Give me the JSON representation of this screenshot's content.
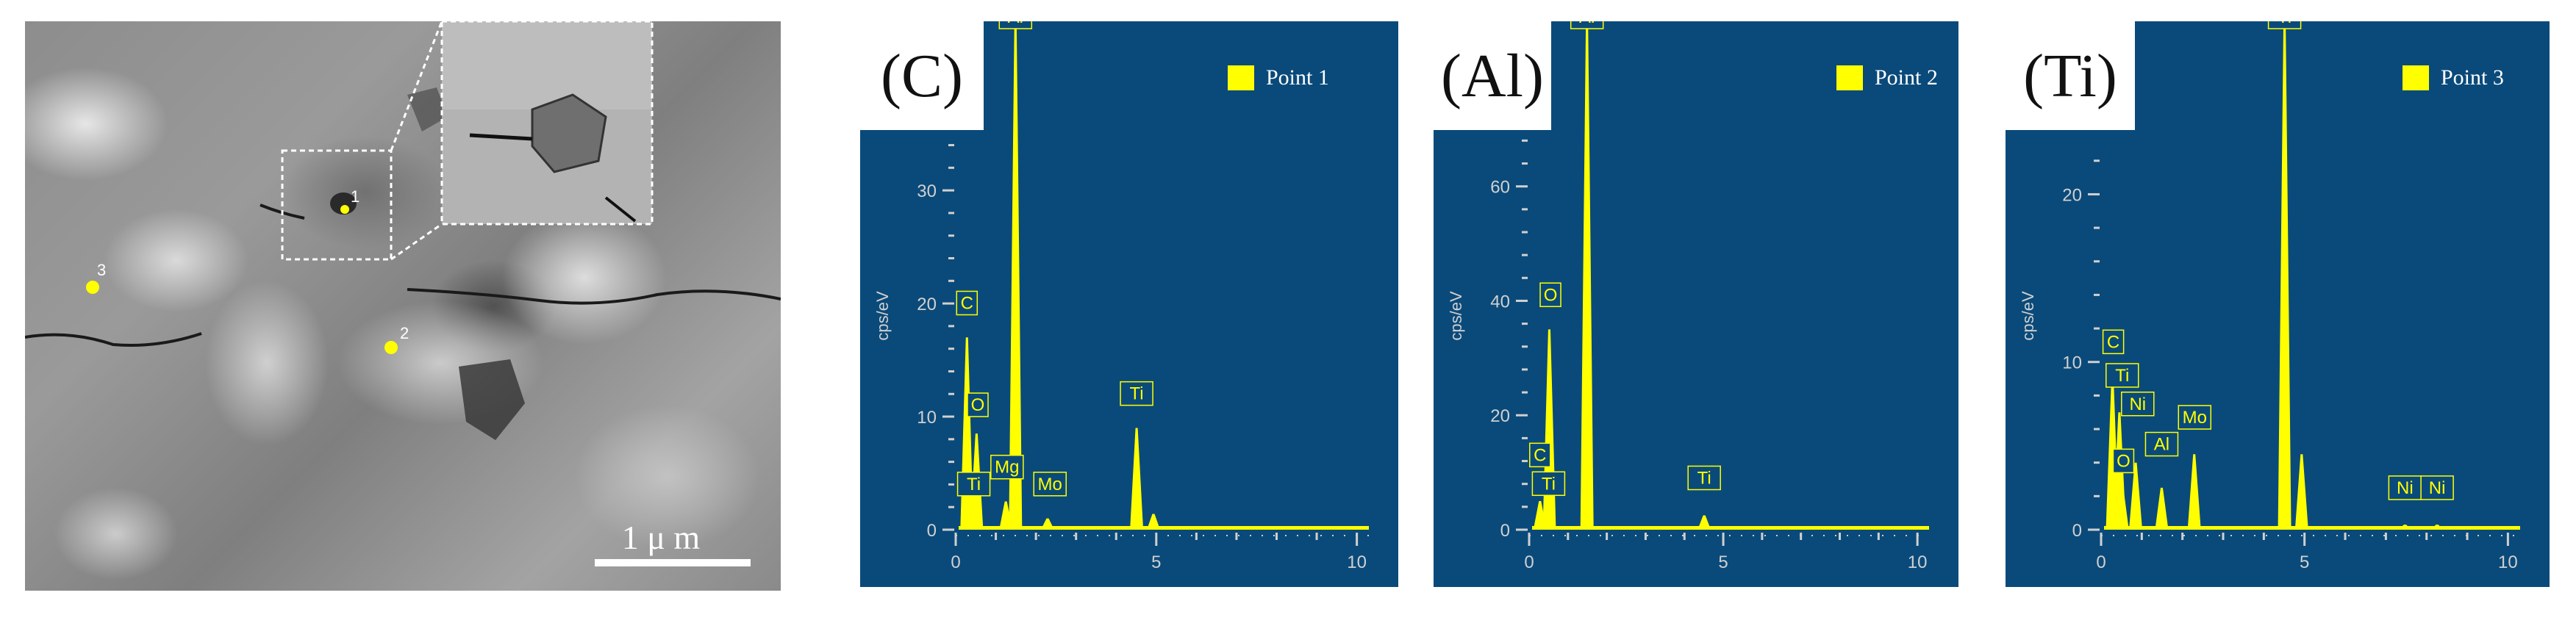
{
  "sem_image": {
    "scale_bar_label": "1 μ m",
    "points": [
      {
        "label": "1"
      },
      {
        "label": "2"
      },
      {
        "label": "3"
      }
    ],
    "colors": {
      "point": "#ffff00",
      "scale_bar": "#ffffff"
    }
  },
  "colors": {
    "panel_bg": "#0a4a7a",
    "spectrum": "#ffff00",
    "axis": "#d0d0d0",
    "label_box": "#ffff00"
  },
  "chart_data": [
    {
      "type": "line",
      "panel_tag": "(C)",
      "ylabel": "cps/eV",
      "xlim": [
        0,
        10.3
      ],
      "ylim": [
        0,
        43
      ],
      "x_ticks": [
        0,
        5,
        10
      ],
      "y_ticks": [
        0,
        10,
        20,
        30
      ],
      "legend": {
        "name": "Point 1",
        "position": "top-right"
      },
      "peaks": [
        {
          "label": "C",
          "x": 0.28,
          "y": 17
        },
        {
          "label": "O",
          "x": 0.52,
          "y": 8.5
        },
        {
          "label": "Ti",
          "x": 0.45,
          "y": 3.5,
          "hide_line": true
        },
        {
          "label": "Mg",
          "x": 1.25,
          "y": 2.5
        },
        {
          "label": "Al",
          "x": 1.49,
          "y": 46
        },
        {
          "label": "Mo",
          "x": 2.29,
          "y": 1.0
        },
        {
          "label": "Ti",
          "x": 4.51,
          "y": 9.0
        },
        {
          "label": "",
          "x": 4.93,
          "y": 1.4
        }
      ],
      "label_boxes": [
        {
          "text": "C",
          "x": 0.28,
          "y": 19
        },
        {
          "text": "O",
          "x": 0.55,
          "y": 10
        },
        {
          "text": "Ti",
          "x": 0.45,
          "y": 3
        },
        {
          "text": "Mg",
          "x": 1.28,
          "y": 4.5
        },
        {
          "text": "Al",
          "x": 1.49,
          "y": 45
        },
        {
          "text": "Mo",
          "x": 2.35,
          "y": 3.0
        },
        {
          "text": "Ti",
          "x": 4.51,
          "y": 11
        }
      ]
    },
    {
      "type": "line",
      "panel_tag": "(Al)",
      "ylabel": "cps/eV",
      "xlim": [
        0,
        10.3
      ],
      "ylim": [
        0,
        85
      ],
      "x_ticks": [
        0,
        5,
        10
      ],
      "y_ticks": [
        0,
        20,
        40,
        60
      ],
      "legend": {
        "name": "Point 2",
        "position": "top-right"
      },
      "peaks": [
        {
          "label": "C",
          "x": 0.28,
          "y": 5
        },
        {
          "label": "Ti",
          "x": 0.45,
          "y": 2.5
        },
        {
          "label": "O",
          "x": 0.52,
          "y": 35
        },
        {
          "label": "Al",
          "x": 1.49,
          "y": 90
        },
        {
          "label": "Ti",
          "x": 4.51,
          "y": 2.5
        }
      ],
      "label_boxes": [
        {
          "text": "C",
          "x": 0.28,
          "y": 11
        },
        {
          "text": "Ti",
          "x": 0.5,
          "y": 6
        },
        {
          "text": "O",
          "x": 0.55,
          "y": 39
        },
        {
          "text": "Al",
          "x": 1.49,
          "y": 89
        },
        {
          "text": "Ti",
          "x": 4.51,
          "y": 7
        }
      ]
    },
    {
      "type": "line",
      "panel_tag": "(Ti)",
      "ylabel": "cps/eV",
      "xlim": [
        0,
        10.3
      ],
      "ylim": [
        0,
        29
      ],
      "x_ticks": [
        0,
        5,
        10
      ],
      "y_ticks": [
        0,
        10,
        20
      ],
      "legend": {
        "name": "Point 3",
        "position": "top-right"
      },
      "peaks": [
        {
          "label": "C",
          "x": 0.28,
          "y": 9
        },
        {
          "label": "Ti",
          "x": 0.45,
          "y": 7
        },
        {
          "label": "O",
          "x": 0.52,
          "y": 2.5
        },
        {
          "label": "Ni",
          "x": 0.85,
          "y": 4
        },
        {
          "label": "Al",
          "x": 1.49,
          "y": 2.5
        },
        {
          "label": "Mo",
          "x": 2.29,
          "y": 4.5
        },
        {
          "label": "Ti",
          "x": 4.51,
          "y": 31
        },
        {
          "label": "",
          "x": 4.93,
          "y": 4.5
        },
        {
          "label": "Ni",
          "x": 7.47,
          "y": 0.3
        },
        {
          "label": "Ni",
          "x": 8.26,
          "y": 0.3
        }
      ],
      "label_boxes": [
        {
          "text": "C",
          "x": 0.3,
          "y": 10.5
        },
        {
          "text": "Ti",
          "x": 0.52,
          "y": 8.5
        },
        {
          "text": "Ni",
          "x": 0.9,
          "y": 6.8
        },
        {
          "text": "O",
          "x": 0.55,
          "y": 3.4
        },
        {
          "text": "Al",
          "x": 1.49,
          "y": 4.4
        },
        {
          "text": "Mo",
          "x": 2.3,
          "y": 6.0
        },
        {
          "text": "Ti",
          "x": 4.51,
          "y": 30.5
        },
        {
          "text": "Ni",
          "x": 7.47,
          "y": 1.8
        },
        {
          "text": "Ni",
          "x": 8.26,
          "y": 1.8
        }
      ]
    }
  ]
}
